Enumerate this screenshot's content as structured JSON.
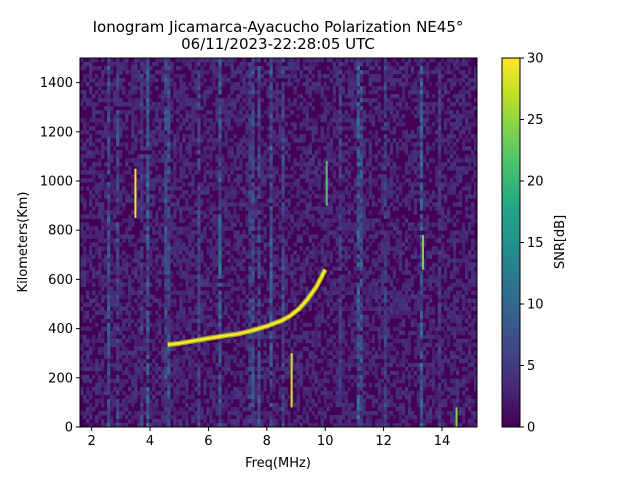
{
  "chart_data": {
    "type": "heatmap",
    "title": "Ionogram Jicamarca-Ayacucho Polarization NE45°",
    "subtitle": "06/11/2023-22:28:05 UTC",
    "xlabel": "Freq(MHz)",
    "ylabel": "Kilometers(Km)",
    "xlim": [
      1.6,
      15.2
    ],
    "ylim": [
      0,
      1500
    ],
    "xticks": [
      2,
      4,
      6,
      8,
      10,
      12,
      14
    ],
    "yticks": [
      0,
      200,
      400,
      600,
      800,
      1000,
      1200,
      1400
    ],
    "grid": false,
    "colorbar": {
      "label": "SNR[dB]",
      "range": [
        0,
        30
      ],
      "ticks": [
        0,
        5,
        10,
        15,
        20,
        25,
        30
      ],
      "colormap": "viridis"
    },
    "traces": [
      {
        "x": [
          4.6,
          5.0,
          5.5,
          6.0,
          6.5,
          7.0,
          7.5,
          8.0,
          8.5,
          8.8,
          9.1,
          9.4,
          9.7,
          10.0
        ],
        "y": [
          335,
          340,
          350,
          360,
          370,
          378,
          392,
          410,
          432,
          452,
          480,
          520,
          570,
          640
        ]
      }
    ],
    "features": [
      {
        "x": 3.5,
        "y": [
          850,
          1050
        ],
        "snr": 30
      },
      {
        "x": 8.85,
        "y": [
          80,
          300
        ],
        "snr": 28
      },
      {
        "x": 10.05,
        "y": [
          900,
          1080
        ],
        "snr": 22
      },
      {
        "x": 13.35,
        "y": [
          640,
          780
        ],
        "snr": 24
      },
      {
        "x": 14.5,
        "y": [
          0,
          80
        ],
        "snr": 24
      }
    ]
  }
}
